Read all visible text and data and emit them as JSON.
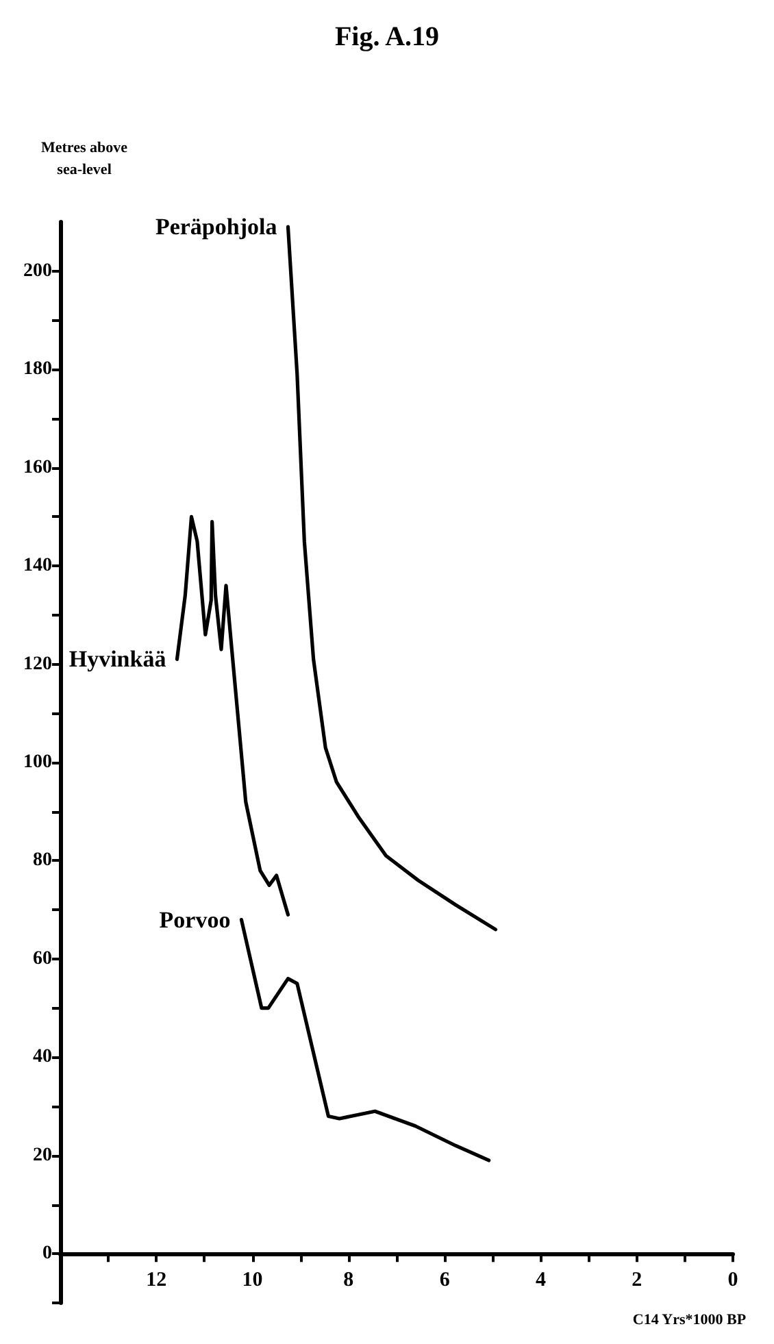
{
  "chart_data": {
    "type": "line",
    "title": "Fig. A.19",
    "xlabel": "C14 Yrs*1000 BP",
    "ylabel": "Metres above sea-level",
    "xlim": [
      14,
      0
    ],
    "ylim": [
      -10,
      210
    ],
    "xticks": [
      {
        "value": 13,
        "label": null
      },
      12,
      {
        "value": 11,
        "label": null
      },
      10,
      {
        "value": 9,
        "label": null
      },
      8,
      {
        "value": 7,
        "label": null
      },
      6,
      {
        "value": 5,
        "label": null
      },
      4,
      {
        "value": 3,
        "label": null
      },
      2,
      {
        "value": 1,
        "label": null
      },
      0
    ],
    "yticks": [
      {
        "value": -10,
        "label": null
      },
      0,
      {
        "value": 10,
        "label": null
      },
      20,
      {
        "value": 30,
        "label": null
      },
      40,
      {
        "value": 50,
        "label": null
      },
      60,
      {
        "value": 70,
        "label": null
      },
      80,
      {
        "value": 90,
        "label": null
      },
      100,
      {
        "value": 110,
        "label": null
      },
      120,
      {
        "value": 130,
        "label": null
      },
      140,
      {
        "value": 150,
        "label": null
      },
      160,
      {
        "value": 170,
        "label": null
      },
      180,
      {
        "value": 190,
        "label": null
      },
      200
    ],
    "grid": false,
    "legend": false,
    "marker": "none",
    "line_style": "solid",
    "series": [
      {
        "name": "Peräpohjola",
        "color": "#000000",
        "x": [
          9.26,
          9.07,
          8.92,
          8.73,
          8.48,
          8.25,
          7.8,
          7.22,
          6.55,
          5.77,
          4.94
        ],
        "values": [
          209,
          179,
          145,
          121,
          103,
          96,
          89,
          81,
          76,
          71,
          66
        ]
      },
      {
        "name": "Hyvinkää",
        "color": "#000000",
        "x": [
          11.57,
          11.4,
          11.27,
          11.15,
          10.98,
          10.86,
          10.84,
          10.77,
          10.65,
          10.55,
          10.43,
          10.28,
          10.14,
          9.84,
          9.65,
          9.5,
          9.26
        ],
        "values": [
          121,
          134,
          150,
          145,
          126,
          133,
          149,
          134,
          123,
          136,
          123,
          107,
          92,
          78,
          75,
          77,
          69
        ]
      },
      {
        "name": "Porvoo",
        "color": "#000000",
        "x": [
          10.23,
          9.81,
          9.67,
          9.26,
          9.07,
          8.42,
          8.19,
          7.45,
          6.61,
          5.77,
          5.08
        ],
        "values": [
          68,
          50,
          50,
          56,
          55,
          28,
          27.5,
          29,
          26,
          22,
          19
        ]
      }
    ]
  }
}
